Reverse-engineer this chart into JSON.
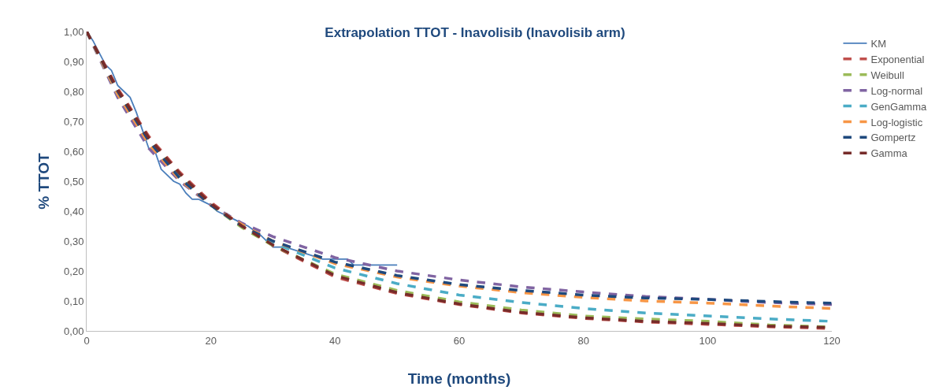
{
  "chart_data": {
    "type": "line",
    "title": "Extrapolation TTOT - Inavolisib (Inavolisib arm)",
    "xlabel": "Time (months)",
    "ylabel": "% TTOT",
    "xlim": [
      0,
      120
    ],
    "xticks": [
      0,
      20,
      40,
      60,
      80,
      100,
      120
    ],
    "ylim": [
      0,
      1
    ],
    "yticks": [
      {
        "value": 0,
        "label": "0,00"
      },
      {
        "value": 0.1,
        "label": "0,10"
      },
      {
        "value": 0.2,
        "label": "0,20"
      },
      {
        "value": 0.3,
        "label": "0,30"
      },
      {
        "value": 0.4,
        "label": "0,40"
      },
      {
        "value": 0.5,
        "label": "0,50"
      },
      {
        "value": 0.6,
        "label": "0,60"
      },
      {
        "value": 0.7,
        "label": "0,70"
      },
      {
        "value": 0.8,
        "label": "0,80"
      },
      {
        "value": 0.9,
        "label": "0,90"
      },
      {
        "value": 1,
        "label": "1,00"
      }
    ],
    "grid": false,
    "legend": "top right",
    "marker": "none",
    "x": [
      0,
      5,
      10,
      15,
      20,
      25,
      30,
      40,
      50,
      60,
      70,
      80,
      90,
      100,
      110,
      120
    ],
    "series": [
      {
        "name": "KM",
        "color": "#4a7ebb",
        "line_style": "solid",
        "x": [
          0,
          1,
          2,
          3,
          4,
          5,
          6,
          7,
          8,
          9,
          10,
          11,
          12,
          13,
          14,
          15,
          16,
          17,
          18,
          19,
          20,
          21,
          22,
          24,
          26,
          28,
          30,
          32,
          35,
          38,
          42,
          43,
          50
        ],
        "values": [
          1,
          0.97,
          0.93,
          0.89,
          0.87,
          0.82,
          0.8,
          0.78,
          0.73,
          0.67,
          0.61,
          0.6,
          0.54,
          0.52,
          0.5,
          0.49,
          0.46,
          0.44,
          0.44,
          0.43,
          0.42,
          0.4,
          0.39,
          0.37,
          0.35,
          0.32,
          0.28,
          0.28,
          0.26,
          0.24,
          0.24,
          0.22,
          0.22
        ]
      },
      {
        "name": "Exponential",
        "color": "#c0504d",
        "line_style": "dashed",
        "values": [
          1,
          0.81,
          0.65,
          0.53,
          0.43,
          0.35,
          0.285,
          0.18,
          0.125,
          0.088,
          0.06,
          0.042,
          0.03,
          0.022,
          0.014,
          0.008
        ]
      },
      {
        "name": "Weibull",
        "color": "#9bbb59",
        "line_style": "dashed",
        "values": [
          1,
          0.8,
          0.64,
          0.52,
          0.42,
          0.345,
          0.285,
          0.19,
          0.135,
          0.097,
          0.07,
          0.05,
          0.04,
          0.032,
          0.02,
          0.013
        ]
      },
      {
        "name": "Log-normal",
        "color": "#8064a2",
        "line_style": "dashed",
        "values": [
          1,
          0.78,
          0.61,
          0.5,
          0.42,
          0.36,
          0.315,
          0.245,
          0.2,
          0.17,
          0.147,
          0.13,
          0.115,
          0.105,
          0.095,
          0.088
        ]
      },
      {
        "name": "GenGamma",
        "color": "#4bacc6",
        "line_style": "dashed",
        "values": [
          1,
          0.79,
          0.63,
          0.51,
          0.42,
          0.35,
          0.295,
          0.21,
          0.158,
          0.12,
          0.095,
          0.075,
          0.06,
          0.05,
          0.04,
          0.032
        ]
      },
      {
        "name": "Log-logistic",
        "color": "#f79646",
        "line_style": "dashed",
        "values": [
          1,
          0.79,
          0.625,
          0.505,
          0.42,
          0.355,
          0.3,
          0.225,
          0.18,
          0.15,
          0.128,
          0.112,
          0.1,
          0.093,
          0.083,
          0.075
        ]
      },
      {
        "name": "Gompertz",
        "color": "#1f497d",
        "line_style": "dashed",
        "values": [
          1,
          0.8,
          0.635,
          0.51,
          0.42,
          0.35,
          0.3,
          0.23,
          0.185,
          0.155,
          0.135,
          0.12,
          0.11,
          0.105,
          0.098,
          0.093
        ]
      },
      {
        "name": "Gamma",
        "color": "#772c2a",
        "line_style": "dashed",
        "values": [
          1,
          0.805,
          0.645,
          0.525,
          0.425,
          0.35,
          0.287,
          0.185,
          0.128,
          0.09,
          0.062,
          0.044,
          0.032,
          0.025,
          0.016,
          0.011
        ]
      }
    ]
  }
}
